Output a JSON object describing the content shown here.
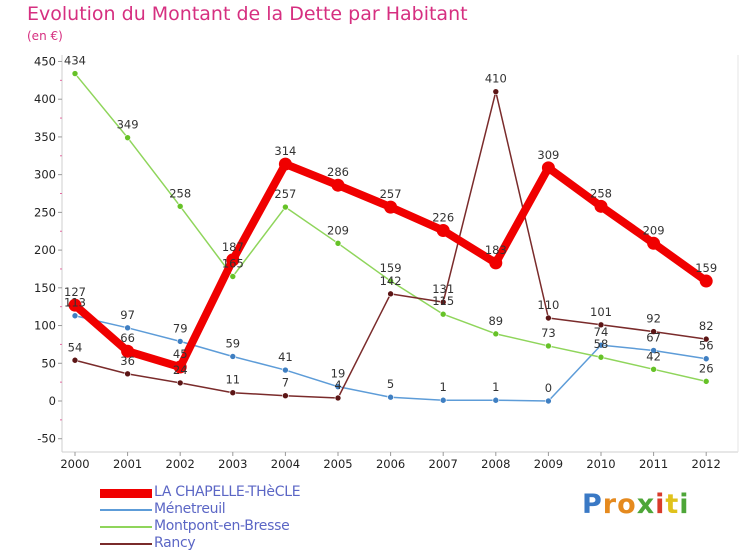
{
  "title": "Evolution du Montant de la Dette par Habitant",
  "unit_label": "(en €)",
  "logo": {
    "text": "Proxiti",
    "letters": [
      {
        "ch": "P",
        "color": "#3a79c5"
      },
      {
        "ch": "r",
        "color": "#e58a1f"
      },
      {
        "ch": "o",
        "color": "#e58a1f"
      },
      {
        "ch": "x",
        "color": "#4ea638"
      },
      {
        "ch": "i",
        "color": "#d93b2b"
      },
      {
        "ch": "t",
        "color": "#e0c21c"
      },
      {
        "ch": "i",
        "color": "#4ea638"
      }
    ]
  },
  "chart_data": {
    "type": "line",
    "x": [
      "2000",
      "2001",
      "2002",
      "2003",
      "2004",
      "2005",
      "2006",
      "2007",
      "2008",
      "2009",
      "2010",
      "2011",
      "2012"
    ],
    "ylim": [
      -50,
      450
    ],
    "yticks": [
      -50,
      0,
      50,
      100,
      150,
      200,
      250,
      300,
      350,
      400,
      450
    ],
    "grid": false,
    "legend_position": "bottom-left",
    "series": [
      {
        "name": "LA CHAPELLE-THèCLE",
        "color": "#f00000",
        "marker": "#f00000",
        "width": 8,
        "values": [
          127,
          66,
          45,
          187,
          314,
          286,
          257,
          226,
          183,
          309,
          258,
          209,
          159
        ]
      },
      {
        "name": "Ménetreuil",
        "color": "#5d9cd8",
        "marker": "#3f7fc2",
        "width": 1.5,
        "values": [
          113,
          97,
          79,
          59,
          41,
          19,
          5,
          1,
          1,
          0,
          74,
          67,
          56
        ]
      },
      {
        "name": "Montpont-en-Bresse",
        "color": "#8fd55b",
        "marker": "#66c227",
        "width": 1.5,
        "values": [
          434,
          349,
          258,
          165,
          257,
          209,
          159,
          115,
          89,
          73,
          58,
          42,
          26
        ]
      },
      {
        "name": "Rancy",
        "color": "#7a2b2b",
        "marker": "#5c1515",
        "width": 1.5,
        "values": [
          54,
          36,
          24,
          11,
          7,
          4,
          142,
          131,
          410,
          110,
          101,
          92,
          82
        ]
      }
    ]
  }
}
